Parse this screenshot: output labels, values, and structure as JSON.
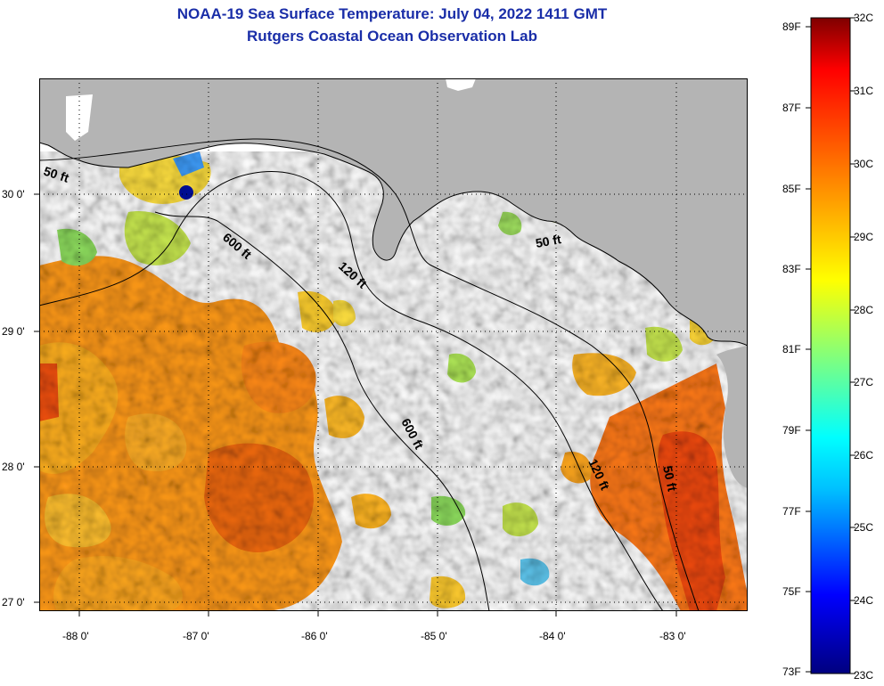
{
  "title_line1": "NOAA-19 Sea Surface Temperature:  July 04, 2022 1411 GMT",
  "title_line2": "Rutgers Coastal Ocean Observation Lab",
  "lat_ticks": [
    "30 0'",
    "29 0'",
    "28 0'",
    "27 0'"
  ],
  "lon_ticks": [
    "-88 0'",
    "-87 0'",
    "-86 0'",
    "-85 0'",
    "-84 0'",
    "-83 0'"
  ],
  "contours": {
    "c50_west": "50 ft",
    "c600_north": "600 ft",
    "c120_north": "120 ft",
    "c50_east": "50 ft",
    "c600_south": "600 ft",
    "c120_south": "120 ft",
    "c50_south": "50 ft"
  },
  "colorbar": {
    "fahrenheit": [
      "89F",
      "87F",
      "85F",
      "83F",
      "81F",
      "79F",
      "77F",
      "75F",
      "73F"
    ],
    "celsius": [
      "32C",
      "31C",
      "30C",
      "29C",
      "28C",
      "27C",
      "26C",
      "25C",
      "24C",
      "23C"
    ],
    "colors": [
      "#00007f",
      "#0000ff",
      "#00bfff",
      "#00ffff",
      "#7fff7f",
      "#ffff00",
      "#ff9f00",
      "#ff4000",
      "#ff0000",
      "#7f0000"
    ]
  },
  "land_color": "#b4b4b4",
  "cloud_color": "#ffffff"
}
